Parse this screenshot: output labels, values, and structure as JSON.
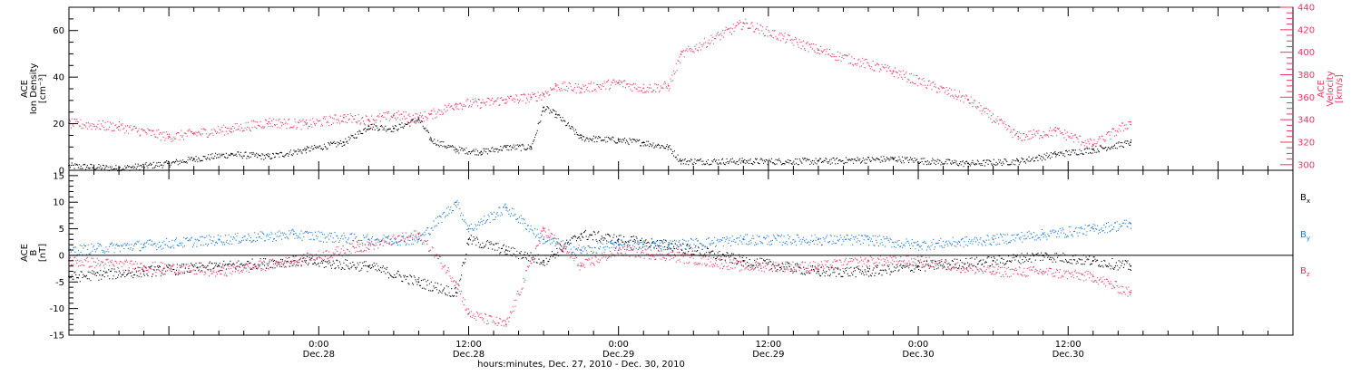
{
  "chart_data": {
    "type": "scatter",
    "time_axis": {
      "range": [
        "2010-12-27T04:00",
        "2010-12-31T06:00"
      ],
      "ticks": [
        {
          "t": "2010-12-28T00:00",
          "time": "0:00",
          "date": "Dec.28"
        },
        {
          "t": "2010-12-28T12:00",
          "time": "12:00",
          "date": "Dec.28"
        },
        {
          "t": "2010-12-29T00:00",
          "time": "0:00",
          "date": "Dec.29"
        },
        {
          "t": "2010-12-29T12:00",
          "time": "12:00",
          "date": "Dec.29"
        },
        {
          "t": "2010-12-30T00:00",
          "time": "0:00",
          "date": "Dec.30"
        },
        {
          "t": "2010-12-30T12:00",
          "time": "12:00",
          "date": "Dec.30"
        }
      ],
      "xlabel": "hours:minutes, Dec. 27, 2010 - Dec. 30, 2010"
    },
    "panels": [
      {
        "id": "plasma",
        "ylabel_lines": [
          "ACE",
          "Ion Density",
          "[cm⁻³]"
        ],
        "ylim": [
          0,
          70
        ],
        "yticks": [
          0,
          20,
          40,
          60
        ],
        "ylabel_right_lines": [
          "ACE",
          "Velocity",
          "[km/s]"
        ],
        "ylim_right": [
          295,
          440
        ],
        "yticks_right": [
          300,
          320,
          340,
          360,
          380,
          400,
          420,
          440
        ],
        "series": [
          {
            "color": "#000000",
            "axis": "left",
            "x": [
              "2010-12-27T04:00",
              "2010-12-27T08:00",
              "2010-12-27T12:00",
              "2010-12-27T14:00",
              "2010-12-27T17:00",
              "2010-12-27T20:00",
              "2010-12-27T23:00",
              "2010-12-28T02:00",
              "2010-12-28T04:00",
              "2010-12-28T06:00",
              "2010-12-28T08:00",
              "2010-12-28T09:00",
              "2010-12-28T11:00",
              "2010-12-28T13:00",
              "2010-12-28T15:00",
              "2010-12-28T17:00",
              "2010-12-28T18:00",
              "2010-12-28T19:00",
              "2010-12-28T21:00",
              "2010-12-29T00:00",
              "2010-12-29T02:00",
              "2010-12-29T04:00",
              "2010-12-29T05:00",
              "2010-12-29T10:00",
              "2010-12-29T16:00",
              "2010-12-29T22:00",
              "2010-12-30T04:00",
              "2010-12-30T08:00",
              "2010-12-30T11:00",
              "2010-12-30T14:00",
              "2010-12-30T17:00"
            ],
            "y": [
              2,
              1,
              3,
              5,
              7,
              6,
              9,
              12,
              19,
              18,
              22,
              13,
              9,
              8,
              10,
              10,
              27,
              24,
              14,
              13,
              12,
              10,
              4,
              4,
              4,
              5,
              3,
              4,
              7,
              9,
              12
            ]
          },
          {
            "color": "#e8365f",
            "axis": "right",
            "x": [
              "2010-12-27T04:00",
              "2010-12-27T08:00",
              "2010-12-27T12:00",
              "2010-12-27T14:00",
              "2010-12-27T17:00",
              "2010-12-27T20:00",
              "2010-12-27T23:00",
              "2010-12-28T02:00",
              "2010-12-28T04:00",
              "2010-12-28T06:00",
              "2010-12-28T08:00",
              "2010-12-28T09:00",
              "2010-12-28T11:00",
              "2010-12-28T13:00",
              "2010-12-28T15:00",
              "2010-12-28T17:00",
              "2010-12-28T18:00",
              "2010-12-28T19:00",
              "2010-12-28T21:00",
              "2010-12-29T00:00",
              "2010-12-29T02:00",
              "2010-12-29T04:00",
              "2010-12-29T05:00",
              "2010-12-29T10:00",
              "2010-12-29T16:00",
              "2010-12-29T22:00",
              "2010-12-30T04:00",
              "2010-12-30T08:00",
              "2010-12-30T11:00",
              "2010-12-30T14:00",
              "2010-12-30T17:00"
            ],
            "y": [
              337,
              334,
              325,
              328,
              332,
              338,
              336,
              342,
              340,
              344,
              342,
              345,
              354,
              355,
              358,
              360,
              363,
              370,
              368,
              373,
              368,
              370,
              398,
              426,
              402,
              383,
              358,
              325,
              330,
              318,
              338
            ]
          }
        ]
      },
      {
        "id": "field",
        "ylabel_lines": [
          "ACE",
          "B",
          "[nT]"
        ],
        "ylim": [
          -15,
          16
        ],
        "yticks": [
          -15,
          -10,
          -5,
          0,
          5,
          10,
          15
        ],
        "zero_line": true,
        "legend_placement": "right",
        "series": [
          {
            "name": "B",
            "subscript": "x",
            "color": "#000000",
            "x": [
              "2010-12-27T04:00",
              "2010-12-27T10:00",
              "2010-12-27T16:00",
              "2010-12-27T22:00",
              "2010-12-28T04:00",
              "2010-12-28T08:00",
              "2010-12-28T11:00",
              "2010-12-28T12:00",
              "2010-12-28T15:00",
              "2010-12-28T18:00",
              "2010-12-28T21:00",
              "2010-12-29T00:00",
              "2010-12-29T04:00",
              "2010-12-29T10:00",
              "2010-12-29T16:00",
              "2010-12-29T20:00",
              "2010-12-30T00:00",
              "2010-12-30T06:00",
              "2010-12-30T10:00",
              "2010-12-30T14:00",
              "2010-12-30T17:00"
            ],
            "y": [
              -4,
              -3,
              -2,
              -1,
              -2,
              -5,
              -7,
              3,
              1,
              -1,
              4,
              3,
              2,
              -1,
              -3,
              -3,
              -2,
              -1,
              0,
              -1,
              -2
            ]
          },
          {
            "name": "B",
            "subscript": "y",
            "color": "#1a78d6",
            "x": [
              "2010-12-27T04:00",
              "2010-12-27T10:00",
              "2010-12-27T16:00",
              "2010-12-27T22:00",
              "2010-12-28T04:00",
              "2010-12-28T08:00",
              "2010-12-28T11:00",
              "2010-12-28T12:00",
              "2010-12-28T15:00",
              "2010-12-28T18:00",
              "2010-12-28T21:00",
              "2010-12-29T00:00",
              "2010-12-29T04:00",
              "2010-12-29T10:00",
              "2010-12-29T16:00",
              "2010-12-29T20:00",
              "2010-12-30T00:00",
              "2010-12-30T06:00",
              "2010-12-30T10:00",
              "2010-12-30T14:00",
              "2010-12-30T17:00"
            ],
            "y": [
              1,
              2,
              3,
              4,
              3,
              3,
              10,
              5,
              9,
              3,
              1,
              2,
              2,
              3,
              3,
              3,
              2,
              3,
              4,
              5,
              6
            ]
          },
          {
            "name": "B",
            "subscript": "z",
            "color": "#e8365f",
            "x": [
              "2010-12-27T04:00",
              "2010-12-27T10:00",
              "2010-12-27T16:00",
              "2010-12-27T22:00",
              "2010-12-28T04:00",
              "2010-12-28T08:00",
              "2010-12-28T11:00",
              "2010-12-28T12:00",
              "2010-12-28T15:00",
              "2010-12-28T18:00",
              "2010-12-28T21:00",
              "2010-12-29T00:00",
              "2010-12-29T04:00",
              "2010-12-29T10:00",
              "2010-12-29T16:00",
              "2010-12-29T20:00",
              "2010-12-30T00:00",
              "2010-12-30T06:00",
              "2010-12-30T10:00",
              "2010-12-30T14:00",
              "2010-12-30T17:00"
            ],
            "y": [
              -1,
              -2,
              -3,
              -1,
              2,
              4,
              -5,
              -11,
              -13,
              5,
              -2,
              1,
              0,
              -2,
              -2,
              -1,
              -1,
              -3,
              -3,
              -4,
              -7
            ]
          }
        ]
      }
    ]
  }
}
